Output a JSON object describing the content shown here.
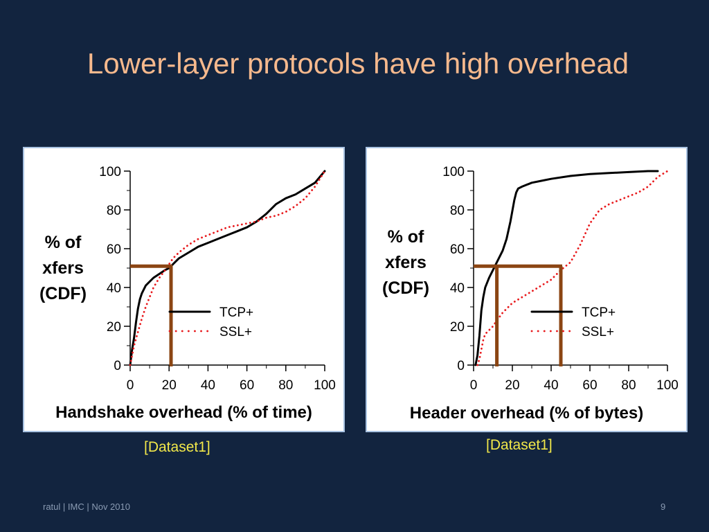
{
  "slide": {
    "title": "Lower-layer protocols have high overhead",
    "footer_left": "ratul | IMC | Nov 2010",
    "page_number": "9"
  },
  "colors": {
    "background": "#12243f",
    "title": "#f6b98d",
    "tcp_line": "#000000",
    "ssl_line": "#e8191c",
    "marker": "#8b4513",
    "dataset_label": "#f2e84a"
  },
  "chart_data": [
    {
      "type": "line",
      "xlabel": "Handshake overhead (% of time)",
      "ylabel_lines": [
        "% of",
        "xfers",
        "(CDF)"
      ],
      "caption": "[Dataset1]",
      "xlim": [
        0,
        100
      ],
      "ylim": [
        0,
        100
      ],
      "xticks": [
        0,
        20,
        40,
        60,
        80,
        100
      ],
      "yticks": [
        0,
        20,
        40,
        60,
        80,
        100
      ],
      "legend_position": "center-right",
      "series": [
        {
          "name": "TCP+",
          "style": "solid",
          "x": [
            0,
            1,
            2,
            3,
            4,
            5,
            6,
            8,
            10,
            12,
            15,
            18,
            20,
            22,
            25,
            30,
            35,
            40,
            45,
            50,
            55,
            60,
            65,
            70,
            75,
            80,
            85,
            90,
            95,
            100
          ],
          "y": [
            0,
            8,
            14,
            22,
            29,
            34,
            37,
            41,
            43,
            45,
            47,
            49,
            50,
            52,
            55,
            58,
            61,
            63,
            65,
            67,
            69,
            71,
            74,
            78,
            83,
            86,
            88,
            91,
            94,
            100
          ]
        },
        {
          "name": "SSL+",
          "style": "dotted",
          "x": [
            0,
            1,
            2,
            4,
            6,
            8,
            10,
            12,
            15,
            18,
            20,
            22,
            25,
            30,
            35,
            40,
            45,
            50,
            55,
            60,
            65,
            70,
            75,
            80,
            85,
            90,
            95,
            100
          ],
          "y": [
            0,
            5,
            10,
            17,
            24,
            30,
            35,
            40,
            45,
            49,
            52,
            55,
            58,
            62,
            65,
            67,
            69,
            71,
            72,
            73,
            74,
            76,
            77,
            79,
            82,
            86,
            92,
            100
          ]
        }
      ],
      "marker": {
        "x": 21,
        "y": 51
      }
    },
    {
      "type": "line",
      "xlabel": "Header overhead (% of bytes)",
      "ylabel_lines": [
        "% of",
        "xfers",
        "(CDF)"
      ],
      "caption": "[Dataset1]",
      "xlim": [
        0,
        100
      ],
      "ylim": [
        0,
        100
      ],
      "xticks": [
        0,
        20,
        40,
        60,
        80,
        100
      ],
      "yticks": [
        0,
        20,
        40,
        60,
        80,
        100
      ],
      "legend_position": "center-right",
      "series": [
        {
          "name": "TCP+",
          "style": "solid",
          "x": [
            1,
            2,
            3,
            4,
            5,
            6,
            8,
            10,
            12,
            15,
            17,
            19,
            21,
            22,
            23,
            25,
            30,
            35,
            40,
            50,
            60,
            70,
            80,
            90,
            95
          ],
          "y": [
            0,
            5,
            15,
            28,
            35,
            40,
            45,
            49,
            53,
            59,
            65,
            74,
            85,
            89,
            91,
            92,
            94,
            95,
            96,
            97.5,
            98.5,
            99,
            99.5,
            100,
            100
          ]
        },
        {
          "name": "SSL+",
          "style": "dotted",
          "x": [
            2,
            3,
            4,
            5,
            6,
            8,
            10,
            12,
            15,
            20,
            25,
            30,
            35,
            40,
            45,
            50,
            55,
            60,
            65,
            70,
            75,
            80,
            85,
            90,
            95,
            100
          ],
          "y": [
            0,
            3,
            8,
            13,
            16,
            18,
            20,
            23,
            27,
            32,
            35,
            38,
            41,
            44,
            49,
            53,
            62,
            73,
            80,
            83,
            85,
            87,
            89,
            92,
            97,
            100
          ]
        }
      ],
      "marker": {
        "x": 12,
        "x2": 45,
        "y": 51
      }
    }
  ]
}
